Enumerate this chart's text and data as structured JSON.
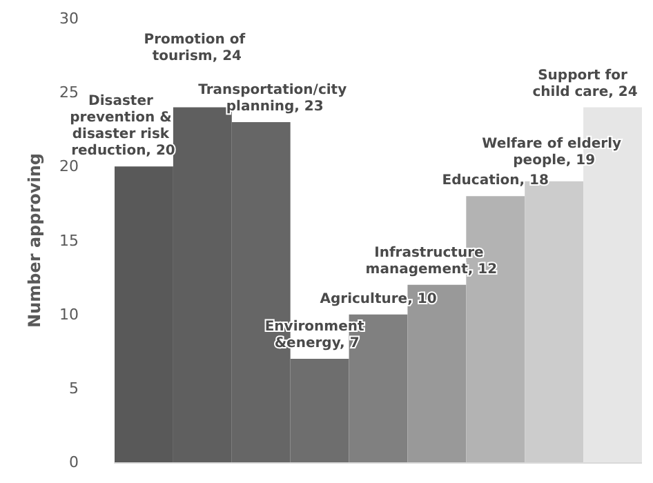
{
  "chart_data": {
    "type": "bar",
    "ylabel": "Number approving",
    "categories": [
      null,
      null,
      null,
      null,
      null,
      null,
      null,
      null,
      null
    ],
    "values": [
      20,
      24,
      23,
      7,
      10,
      12,
      18,
      19,
      24
    ],
    "value_labels": [
      "Disaster prevention & disaster risk reduction, 20",
      "Promotion of tourism, 24",
      "Transportation/city planning, 23",
      "Environment &energy, 7",
      "Agriculture, 10",
      "Infrastructure management, 12",
      "Education, 18",
      "Welfare of elderly people, 19",
      "Support for child care, 24"
    ],
    "colors": [
      "#595959",
      "#5f5f5f",
      "#666666",
      "#6e6e6e",
      "#808080",
      "#999999",
      "#b3b3b3",
      "#cccccc",
      "#e6e6e6"
    ],
    "ylim": [
      0,
      30
    ],
    "yticks": [
      0,
      5,
      10,
      15,
      20,
      25,
      30
    ],
    "grid": false,
    "tick_labels": "y"
  }
}
